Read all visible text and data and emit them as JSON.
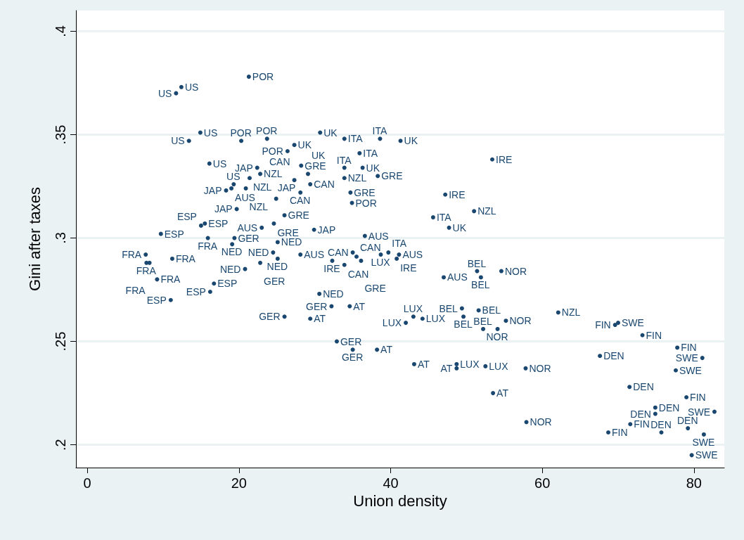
{
  "chart_data": {
    "type": "scatter",
    "xlabel": "Union density",
    "ylabel": "Gini after taxes",
    "xlim": [
      -1.5,
      84
    ],
    "xticks": [
      0,
      20,
      40,
      60,
      80
    ],
    "ylim": [
      0.189,
      0.41
    ],
    "yticks": [
      {
        "value": 0.2,
        "label": ".2"
      },
      {
        "value": 0.25,
        "label": ".25"
      },
      {
        "value": 0.3,
        "label": ".3"
      },
      {
        "value": 0.35,
        "label": ".35"
      },
      {
        "value": 0.4,
        "label": ".4"
      }
    ],
    "grid": "y",
    "marker": "circle",
    "series": [
      {
        "color": "#1a476f",
        "x": [
          12.4,
          11.7,
          21.3,
          14.9,
          13.4,
          20.3,
          23.7,
          27.3,
          26.4,
          16.1,
          30.7,
          33.9,
          38.6,
          41.3,
          35.9,
          22.4,
          22.8,
          21.4,
          28.2,
          29.1,
          27.3,
          29.4,
          33.9,
          36.3,
          33.9,
          38.3,
          28.1,
          34.7,
          34.9,
          19.3,
          19.0,
          18.3,
          20.9,
          24.9,
          19.7,
          26.0,
          24.6,
          23.0,
          29.9,
          36.6,
          9.7,
          15.5,
          15.0,
          15.9,
          19.4,
          19.1,
          25.1,
          24.5,
          28.1,
          25.1,
          22.8,
          20.8,
          7.7,
          11.2,
          7.8,
          8.2,
          9.2,
          16.7,
          16.2,
          11.0,
          32.3,
          35.0,
          35.5,
          33.9,
          36.1,
          38.7,
          39.7,
          41.1,
          40.8,
          53.4,
          47.2,
          45.6,
          51.0,
          47.7,
          47.0,
          51.4,
          51.9,
          54.6,
          30.6,
          32.2,
          34.6,
          26.0,
          29.4,
          32.9,
          35.0,
          38.2,
          43.0,
          44.2,
          42.0,
          43.1,
          48.7,
          48.7,
          52.5,
          57.8,
          53.5,
          49.4,
          51.6,
          49.6,
          55.2,
          52.2,
          54.1,
          57.9,
          62.1,
          70.0,
          69.6,
          73.2,
          67.6,
          77.8,
          81.1,
          77.6,
          71.5,
          79.0,
          74.9,
          74.9,
          82.7,
          71.6,
          79.2,
          68.7,
          75.7,
          81.3,
          79.7
        ],
        "values": [
          0.373,
          0.37,
          0.378,
          0.351,
          0.347,
          0.347,
          0.348,
          0.345,
          0.342,
          0.336,
          0.351,
          0.348,
          0.348,
          0.347,
          0.341,
          0.334,
          0.331,
          0.329,
          0.335,
          0.331,
          0.328,
          0.326,
          0.334,
          0.334,
          0.329,
          0.33,
          0.322,
          0.322,
          0.317,
          0.326,
          0.324,
          0.323,
          0.324,
          0.319,
          0.314,
          0.311,
          0.307,
          0.305,
          0.304,
          0.301,
          0.302,
          0.307,
          0.306,
          0.3,
          0.3,
          0.297,
          0.298,
          0.293,
          0.292,
          0.29,
          0.288,
          0.285,
          0.292,
          0.29,
          0.288,
          0.288,
          0.28,
          0.278,
          0.274,
          0.27,
          0.289,
          0.293,
          0.291,
          0.287,
          0.289,
          0.292,
          0.293,
          0.292,
          0.29,
          0.338,
          0.321,
          0.31,
          0.313,
          0.305,
          0.281,
          0.284,
          0.281,
          0.284,
          0.273,
          0.267,
          0.267,
          0.262,
          0.261,
          0.25,
          0.246,
          0.246,
          0.262,
          0.261,
          0.259,
          0.239,
          0.239,
          0.237,
          0.238,
          0.237,
          0.225,
          0.266,
          0.265,
          0.262,
          0.26,
          0.256,
          0.256,
          0.211,
          0.264,
          0.259,
          0.258,
          0.253,
          0.243,
          0.247,
          0.242,
          0.236,
          0.228,
          0.223,
          0.218,
          0.215,
          0.216,
          0.21,
          0.208,
          0.206,
          0.206,
          0.205,
          0.195
        ],
        "value_labels": [
          "US",
          "US",
          "POR",
          "US",
          "US",
          "POR",
          "POR",
          "UK",
          "POR",
          "US",
          "UK",
          "ITA",
          "ITA",
          "UK",
          "ITA",
          "JAP",
          "NZL",
          "NZL",
          "GRE",
          "UK",
          "CAN",
          "CAN",
          "ITA",
          "UK",
          "NZL",
          "GRE",
          "CAN",
          "GRE",
          "POR",
          "US",
          "AUS",
          "JAP",
          "NZL",
          "JAP",
          "JAP",
          "GRE",
          "GRE",
          "AUS",
          "JAP",
          "AUS",
          "ESP",
          "ESP",
          "ESP",
          "FRA",
          "GER",
          "NED",
          "NED",
          "NED",
          "AUS",
          "NED",
          "GER",
          "NED",
          "FRA",
          "FRA",
          "FRA",
          "FRA",
          "FRA",
          "ESP",
          "ESP",
          "ESP",
          "IRE",
          "CAN",
          "CAN",
          "CAN",
          "GRE",
          "LUX",
          "ITA",
          "AUS",
          "IRE",
          "IRE",
          "IRE",
          "ITA",
          "NZL",
          "UK",
          "AUS",
          "BEL",
          "BEL",
          "NOR",
          "NED",
          "GER",
          "AT",
          "GER",
          "AT",
          "GER",
          "GER",
          "AT",
          "LUX",
          "LUX",
          "LUX",
          "AT",
          "LUX",
          "AT",
          "LUX",
          "NOR",
          "AT",
          "BEL",
          "BEL",
          "BEL",
          "NOR",
          "BEL",
          "NOR",
          "NOR",
          "NZL",
          "SWE",
          "FIN",
          "FIN",
          "DEN",
          "FIN",
          "SWE",
          "SWE",
          "DEN",
          "FIN",
          "DEN",
          "DEN",
          "SWE",
          "FIN",
          "DEN",
          "FIN",
          "DEN",
          "SWE",
          "SWE"
        ]
      }
    ]
  }
}
